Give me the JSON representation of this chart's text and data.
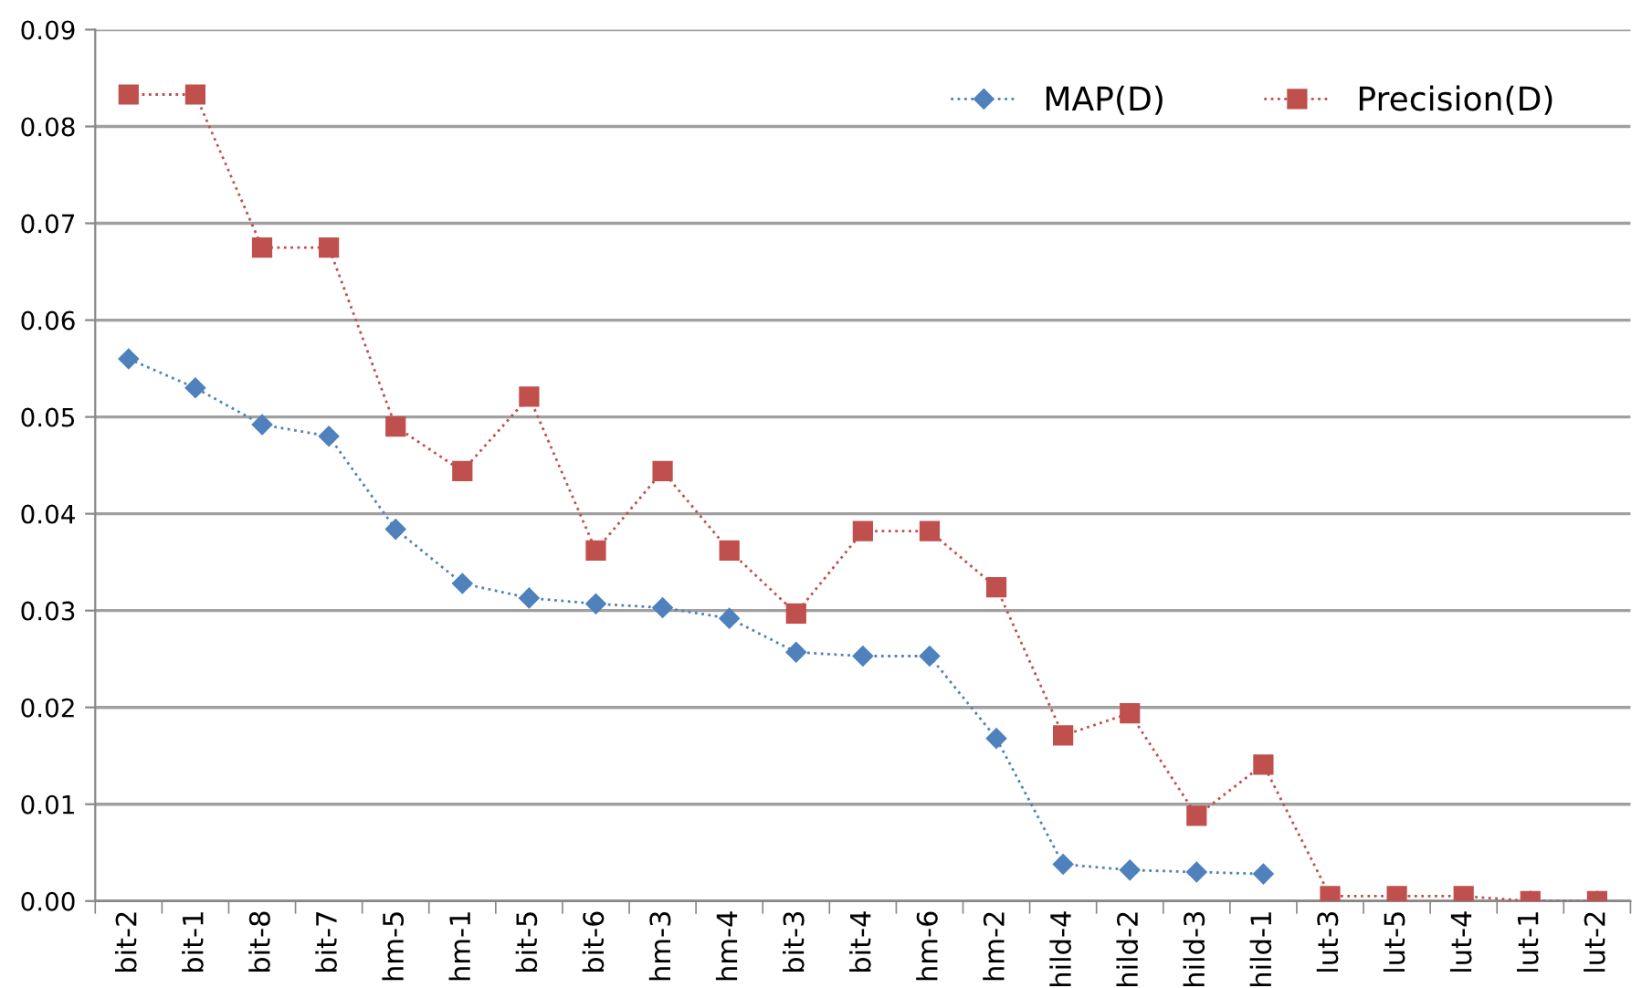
{
  "chart_data": {
    "type": "line",
    "categories": [
      "bit-2",
      "bit-1",
      "bit-8",
      "bit-7",
      "hm-5",
      "hm-1",
      "bit-5",
      "bit-6",
      "hm-3",
      "hm-4",
      "bit-3",
      "bit-4",
      "hm-6",
      "hm-2",
      "hild-4",
      "hild-2",
      "hild-3",
      "hild-1",
      "lut-3",
      "lut-5",
      "lut-4",
      "lut-1",
      "lut-2"
    ],
    "series": [
      {
        "name": "MAP(D)",
        "color": "#4f81bd",
        "marker": "diamond",
        "line_style": "dotted",
        "values": [
          0.056,
          0.053,
          0.0492,
          0.048,
          0.0384,
          0.0328,
          0.0313,
          0.0307,
          0.0303,
          0.0292,
          0.0257,
          0.0253,
          0.0253,
          0.0168,
          0.0038,
          0.0032,
          0.003,
          0.0028,
          null,
          null,
          null,
          0.0,
          0.0
        ]
      },
      {
        "name": "Precision(D)",
        "color": "#c0504d",
        "marker": "square",
        "line_style": "dotted",
        "values": [
          0.0833,
          0.0833,
          0.0675,
          0.0675,
          0.049,
          0.0444,
          0.0521,
          0.0362,
          0.0444,
          0.0362,
          0.0297,
          0.0382,
          0.0382,
          0.0324,
          0.0171,
          0.0194,
          0.0088,
          0.0141,
          0.0005,
          0.0005,
          0.0005,
          0.0,
          0.0
        ]
      }
    ],
    "ylim": [
      0,
      0.09
    ],
    "yticks": [
      {
        "value": 0,
        "label": "0.00"
      },
      {
        "value": 0.01,
        "label": "0.01"
      },
      {
        "value": 0.02,
        "label": "0.02"
      },
      {
        "value": 0.03,
        "label": "0.03"
      },
      {
        "value": 0.04,
        "label": "0.04"
      },
      {
        "value": 0.05,
        "label": "0.05"
      },
      {
        "value": 0.06,
        "label": "0.06"
      },
      {
        "value": 0.07,
        "label": "0.07"
      },
      {
        "value": 0.08,
        "label": "0.08"
      },
      {
        "value": 0.09,
        "label": "0.09"
      }
    ],
    "grid": "y",
    "legend": "top right"
  }
}
